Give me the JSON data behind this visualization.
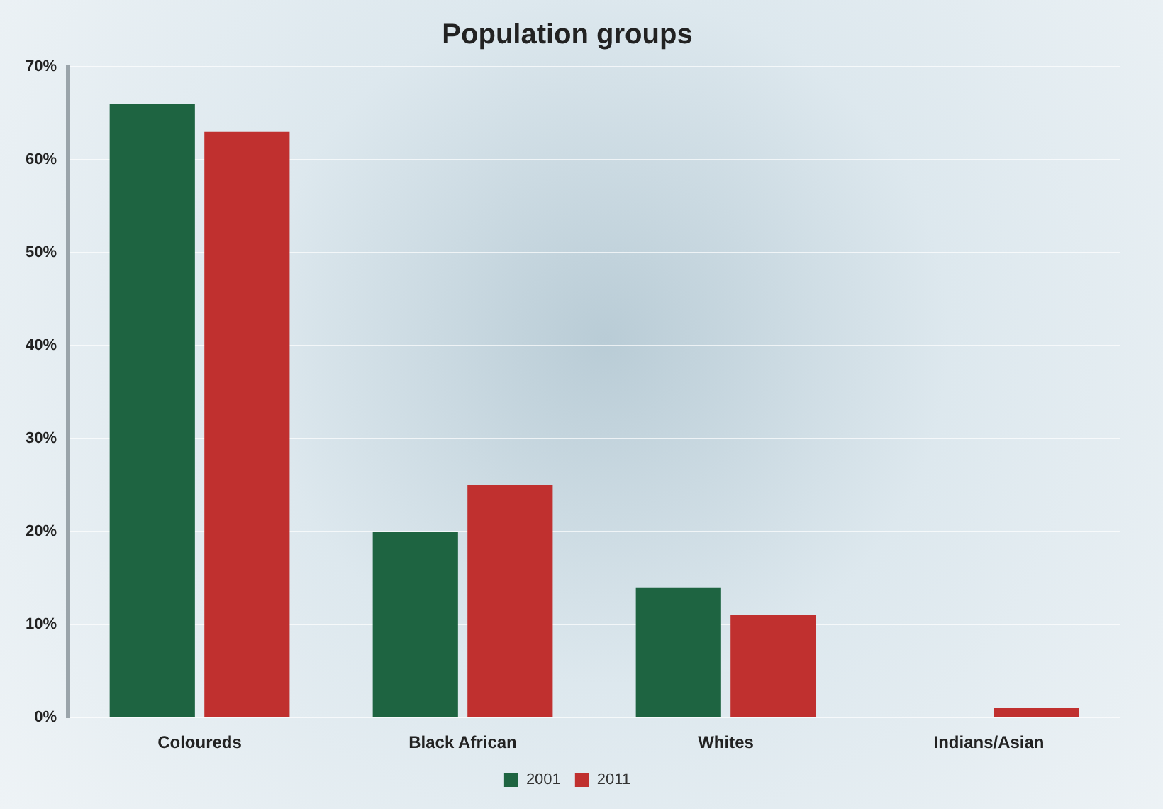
{
  "chart_data": {
    "type": "bar",
    "title": "Population groups",
    "categories": [
      "Coloureds",
      "Black African",
      "Whites",
      "Indians/Asian"
    ],
    "series": [
      {
        "name": "2001",
        "color": "#1e6441",
        "values": [
          66,
          20,
          14,
          0
        ]
      },
      {
        "name": "2011",
        "color": "#c0302f",
        "values": [
          63,
          25,
          11,
          1
        ]
      }
    ],
    "ylim": [
      0,
      70
    ],
    "yticks": [
      {
        "value": 0,
        "label": "0%"
      },
      {
        "value": 10,
        "label": "10%"
      },
      {
        "value": 20,
        "label": "20%"
      },
      {
        "value": 30,
        "label": "30%"
      },
      {
        "value": 40,
        "label": "40%"
      },
      {
        "value": 50,
        "label": "50%"
      },
      {
        "value": 60,
        "label": "60%"
      },
      {
        "value": 70,
        "label": "70%"
      }
    ],
    "grid": "y",
    "legend": "bottom"
  }
}
